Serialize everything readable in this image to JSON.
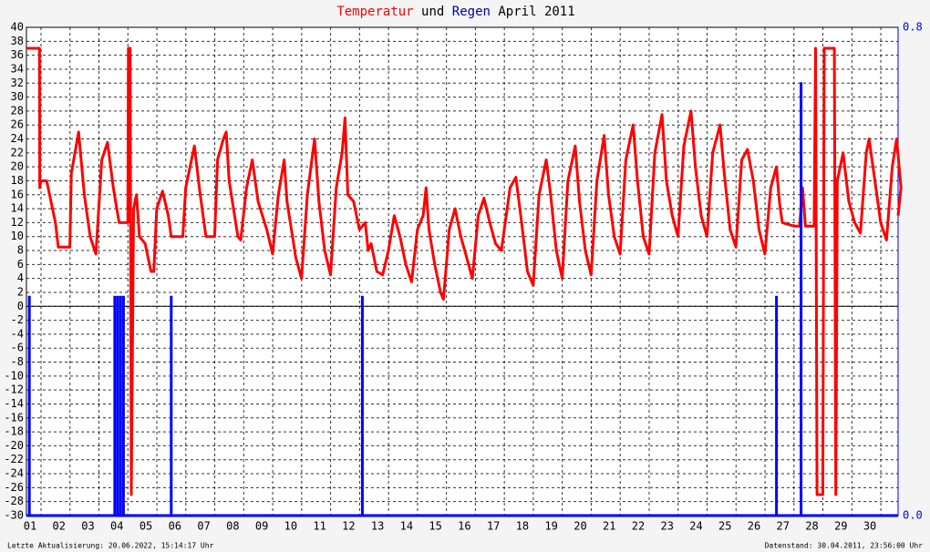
{
  "chart_data": {
    "type": "line",
    "title_join": "und",
    "title": "April 2011",
    "ylim": [
      -30,
      40
    ],
    "yticks": [
      40,
      38,
      36,
      34,
      32,
      30,
      28,
      26,
      24,
      22,
      20,
      18,
      16,
      14,
      12,
      10,
      8,
      6,
      4,
      2,
      0,
      -2,
      -4,
      -6,
      -8,
      -10,
      -12,
      -14,
      -16,
      -18,
      -20,
      -22,
      -24,
      -26,
      -28,
      -30
    ],
    "y2lim": [
      0,
      0.8
    ],
    "y2ticks": [
      {
        "value": 0.8,
        "label": "0.8"
      },
      {
        "value": 0,
        "label": "0.0"
      }
    ],
    "xlim": [
      0,
      30.1
    ],
    "xticks": [
      {
        "value": 0,
        "label": "01"
      },
      {
        "value": 1,
        "label": "02"
      },
      {
        "value": 2,
        "label": "03"
      },
      {
        "value": 3,
        "label": "04"
      },
      {
        "value": 4,
        "label": "05"
      },
      {
        "value": 5,
        "label": "06"
      },
      {
        "value": 6,
        "label": "07"
      },
      {
        "value": 7,
        "label": "08"
      },
      {
        "value": 8,
        "label": "09"
      },
      {
        "value": 9,
        "label": "10"
      },
      {
        "value": 10,
        "label": "11"
      },
      {
        "value": 11,
        "label": "12"
      },
      {
        "value": 12,
        "label": "13"
      },
      {
        "value": 13,
        "label": "14"
      },
      {
        "value": 14,
        "label": "15"
      },
      {
        "value": 15,
        "label": "16"
      },
      {
        "value": 16,
        "label": "17"
      },
      {
        "value": 17,
        "label": "18"
      },
      {
        "value": 18,
        "label": "19"
      },
      {
        "value": 19,
        "label": "20"
      },
      {
        "value": 20,
        "label": "21"
      },
      {
        "value": 21,
        "label": "22"
      },
      {
        "value": 22,
        "label": "23"
      },
      {
        "value": 23,
        "label": "24"
      },
      {
        "value": 24,
        "label": "25"
      },
      {
        "value": 25,
        "label": "26"
      },
      {
        "value": 26,
        "label": "27"
      },
      {
        "value": 27,
        "label": "28"
      },
      {
        "value": 28,
        "label": "29"
      },
      {
        "value": 29,
        "label": "30"
      }
    ],
    "grid": true,
    "series": [
      {
        "name": "Temperatur",
        "color": "#ff0000",
        "x": [
          0,
          0.45,
          0.46,
          0.5,
          0.7,
          0.8,
          1.0,
          1.1,
          1.5,
          1.55,
          1.8,
          2.0,
          2.2,
          2.4,
          2.6,
          2.8,
          3.0,
          3.2,
          3.5,
          3.52,
          3.58,
          3.62,
          3.7,
          3.8,
          3.9,
          4.1,
          4.3,
          4.4,
          4.5,
          4.7,
          4.9,
          5.0,
          5.4,
          5.5,
          5.8,
          6.0,
          6.2,
          6.5,
          6.6,
          6.8,
          6.9,
          7.0,
          7.3,
          7.4,
          7.6,
          7.8,
          8.0,
          8.3,
          8.5,
          8.7,
          8.9,
          9.0,
          9.3,
          9.5,
          9.7,
          9.95,
          10.1,
          10.3,
          10.5,
          10.7,
          10.9,
          11.0,
          11.1,
          11.3,
          11.5,
          11.7,
          11.8,
          11.9,
          12.1,
          12.3,
          12.5,
          12.7,
          12.9,
          13.1,
          13.3,
          13.5,
          13.7,
          13.8,
          13.9,
          14.1,
          14.3,
          14.4,
          14.6,
          14.8,
          15.0,
          15.2,
          15.4,
          15.6,
          15.8,
          16.0,
          16.2,
          16.4,
          16.7,
          16.9,
          17.1,
          17.3,
          17.5,
          17.7,
          17.95,
          18.1,
          18.3,
          18.5,
          18.7,
          18.95,
          19.1,
          19.3,
          19.5,
          19.7,
          19.95,
          20.1,
          20.3,
          20.5,
          20.7,
          20.95,
          21.1,
          21.3,
          21.5,
          21.7,
          21.95,
          22.1,
          22.3,
          22.5,
          22.7,
          22.95,
          23.1,
          23.3,
          23.5,
          23.7,
          23.95,
          24.1,
          24.3,
          24.5,
          24.7,
          24.9,
          25.1,
          25.3,
          25.5,
          25.7,
          25.9,
          26.0,
          26.1,
          26.5,
          26.7,
          26.8,
          26.9,
          27.2,
          27.25,
          27.3,
          27.5,
          27.55,
          27.9,
          27.95,
          28.0,
          28.2,
          28.4,
          28.6,
          28.8,
          29.0,
          29.1,
          29.3,
          29.5,
          29.7,
          29.9,
          30.05,
          30.2,
          30.1
        ],
        "values": [
          37,
          37,
          17,
          18,
          18,
          16,
          12,
          8.5,
          8.5,
          19,
          25,
          16,
          10,
          7.5,
          21,
          23.5,
          17,
          12,
          12,
          37,
          37,
          -27,
          14,
          16,
          10,
          9,
          5,
          5,
          14,
          16.5,
          13,
          10,
          10,
          17,
          23,
          16,
          10,
          10,
          21,
          24,
          25,
          18,
          10,
          9.5,
          17,
          21,
          15,
          11,
          7.5,
          16,
          21,
          15,
          7,
          4,
          16,
          24,
          15,
          8,
          4.5,
          17,
          22,
          27,
          16,
          15,
          11,
          12,
          8,
          9,
          5,
          4.5,
          8,
          13,
          10,
          6,
          3.5,
          11,
          13,
          17,
          11,
          6,
          2,
          1,
          11,
          14,
          10,
          7,
          4,
          13,
          15.5,
          12,
          9,
          8,
          17,
          18.5,
          12,
          5,
          3,
          16,
          21,
          16,
          8,
          4,
          18,
          23,
          15,
          8,
          4.5,
          18,
          24.5,
          16,
          10,
          7.5,
          21,
          26,
          18,
          10,
          7.5,
          22,
          27.5,
          18,
          13,
          10,
          23,
          28,
          20,
          13,
          10,
          22,
          26,
          19,
          11,
          8.5,
          21,
          22.5,
          18,
          11,
          7.5,
          17,
          20,
          15,
          12,
          11.5,
          11.5,
          17,
          11.5,
          11.5,
          37,
          -27,
          -27,
          37,
          37,
          -27,
          18,
          22,
          15,
          12,
          10.5,
          22,
          24,
          18,
          12,
          9.5,
          20,
          24,
          17,
          13
        ]
      },
      {
        "name": "Regen",
        "color": "#0000ff",
        "axis": "y2",
        "x": [
          0.1,
          3.05,
          3.15,
          3.25,
          3.35,
          5.0,
          11.6,
          25.9,
          26.75
        ],
        "values": [
          0.36,
          0.36,
          0.36,
          0.36,
          0.36,
          0.36,
          0.36,
          0.36,
          0.71
        ]
      }
    ],
    "footer_left": "Letzte Aktualisierung: 20.06.2022, 15:14:17 Uhr",
    "footer_right": "Datenstand: 30.04.2011, 23:56:00 Uhr"
  }
}
